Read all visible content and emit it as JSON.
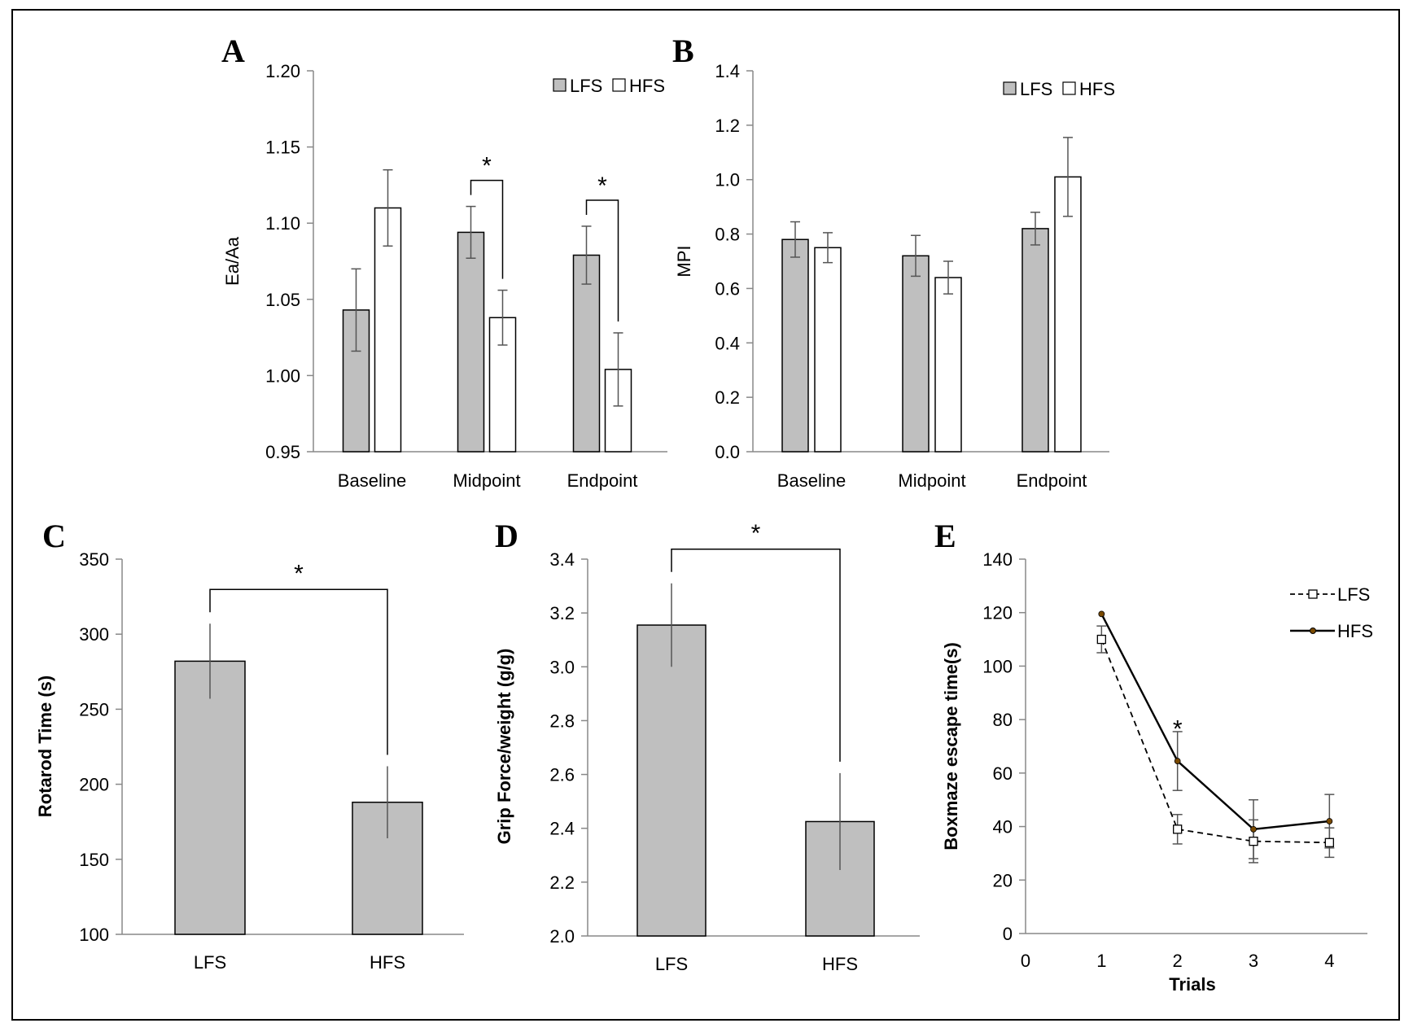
{
  "chart_data": [
    {
      "panel": "A",
      "type": "bar",
      "ylabel": "Ea/Aa",
      "ylim": [
        0.95,
        1.2
      ],
      "yticks": [
        "0.95",
        "1.00",
        "1.05",
        "1.10",
        "1.15",
        "1.20"
      ],
      "categories": [
        "Baseline",
        "Midpoint",
        "Endpoint"
      ],
      "series": [
        {
          "name": "LFS",
          "color": "#bfbfbf",
          "values": [
            1.043,
            1.094,
            1.079
          ],
          "errors": [
            0.027,
            0.017,
            0.019
          ]
        },
        {
          "name": "HFS",
          "color": "#ffffff",
          "values": [
            1.11,
            1.038,
            1.004
          ],
          "errors": [
            0.025,
            0.018,
            0.024
          ]
        }
      ],
      "significance": [
        {
          "category": "Midpoint",
          "label": "*"
        },
        {
          "category": "Endpoint",
          "label": "*"
        }
      ],
      "legend": "top-right"
    },
    {
      "panel": "B",
      "type": "bar",
      "ylabel": "MPI",
      "ylim": [
        0.0,
        1.4
      ],
      "yticks": [
        "0.0",
        "0.2",
        "0.4",
        "0.6",
        "0.8",
        "1.0",
        "1.2",
        "1.4"
      ],
      "categories": [
        "Baseline",
        "Midpoint",
        "Endpoint"
      ],
      "series": [
        {
          "name": "LFS",
          "color": "#bfbfbf",
          "values": [
            0.78,
            0.72,
            0.82
          ],
          "errors": [
            0.065,
            0.075,
            0.06
          ]
        },
        {
          "name": "HFS",
          "color": "#ffffff",
          "values": [
            0.75,
            0.64,
            1.01
          ],
          "errors": [
            0.055,
            0.06,
            0.145
          ]
        }
      ],
      "legend": "top-right"
    },
    {
      "panel": "C",
      "type": "bar",
      "ylabel": "Rotarod Time (s)",
      "ylim": [
        100,
        350
      ],
      "yticks": [
        "100",
        "150",
        "200",
        "250",
        "300",
        "350"
      ],
      "categories": [
        "LFS",
        "HFS"
      ],
      "values": [
        282,
        188
      ],
      "errors": [
        25,
        24
      ],
      "color": "#bfbfbf",
      "significance": [
        {
          "between": [
            "LFS",
            "HFS"
          ],
          "label": "*"
        }
      ]
    },
    {
      "panel": "D",
      "type": "bar",
      "ylabel": "Grip Force/weight (g/g)",
      "ylim": [
        2.0,
        3.4
      ],
      "yticks": [
        "2.0",
        "2.2",
        "2.4",
        "2.6",
        "2.8",
        "3.0",
        "3.2",
        "3.4"
      ],
      "categories": [
        "LFS",
        "HFS"
      ],
      "values": [
        3.155,
        2.425
      ],
      "errors": [
        0.155,
        0.18
      ],
      "color": "#bfbfbf",
      "significance": [
        {
          "between": [
            "LFS",
            "HFS"
          ],
          "label": "*"
        }
      ]
    },
    {
      "panel": "E",
      "type": "line",
      "xlabel": "Trials",
      "ylabel": "Boxmaze escape time(s)",
      "xlim": [
        0,
        4.5
      ],
      "ylim": [
        0,
        140
      ],
      "xticks": [
        "0",
        "1",
        "2",
        "3",
        "4"
      ],
      "yticks": [
        "0",
        "20",
        "40",
        "60",
        "80",
        "100",
        "120",
        "140"
      ],
      "series": [
        {
          "name": "LFS",
          "style": "dashed",
          "marker": "open-square",
          "x": [
            1,
            2,
            3,
            4
          ],
          "values": [
            110,
            39,
            34.5,
            34
          ],
          "errors": [
            5,
            5.5,
            8,
            5.5
          ]
        },
        {
          "name": "HFS",
          "style": "solid",
          "marker": "filled-circle",
          "x": [
            1,
            2,
            3,
            4
          ],
          "values": [
            119.5,
            64.5,
            39,
            42
          ],
          "errors": [
            0,
            11,
            11,
            10
          ]
        }
      ],
      "significance": [
        {
          "x": 2,
          "label": "*"
        }
      ],
      "legend": "top-right"
    }
  ]
}
